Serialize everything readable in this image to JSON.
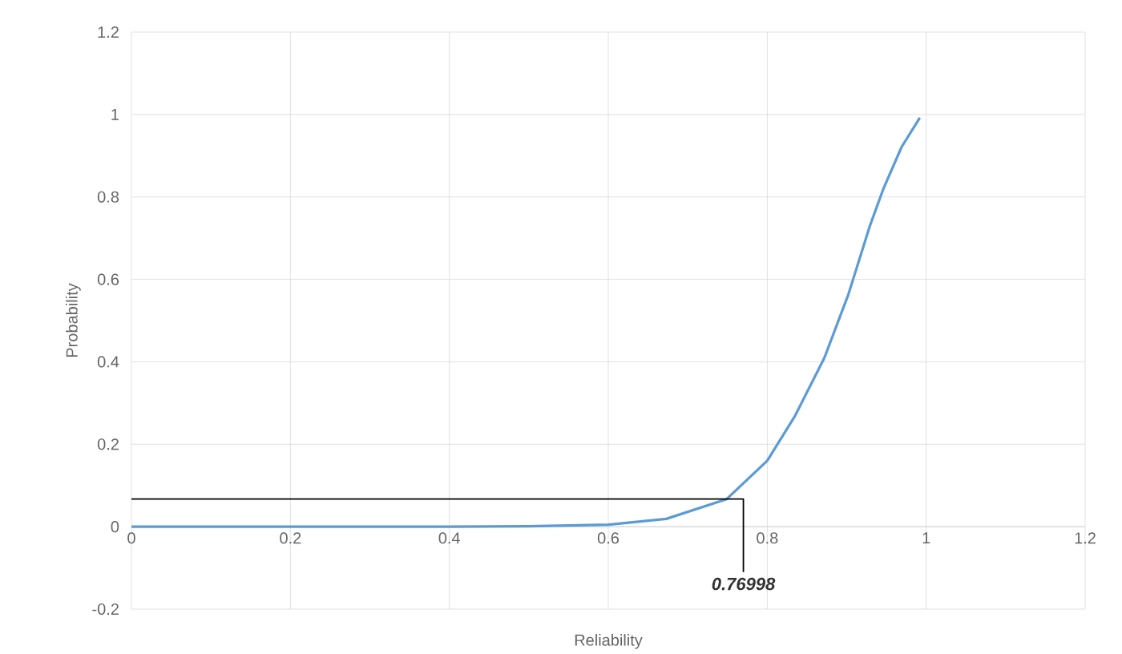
{
  "chart_data": {
    "type": "line",
    "xlabel": "Reliability",
    "ylabel": "Probability",
    "series": [
      {
        "color": "#5b9bd5",
        "x": [
          0,
          0.1,
          0.2,
          0.3,
          0.4,
          0.5,
          0.6,
          0.673,
          0.749,
          0.8,
          0.835,
          0.872,
          0.902,
          0.929,
          0.946,
          0.969,
          0.992
        ],
        "values": [
          0,
          0,
          0,
          0,
          0,
          0.001,
          0.005,
          0.019,
          0.067,
          0.16,
          0.269,
          0.41,
          0.563,
          0.729,
          0.819,
          0.921,
          0.992
        ]
      },
      {
        "color": "#000000",
        "x": [
          0,
          0.76998,
          0.76998
        ],
        "values": [
          0.067,
          0.067,
          -0.11
        ]
      }
    ],
    "annotations": [
      "0.76998"
    ],
    "xlim": [
      0,
      1.2
    ],
    "xticks": [
      0,
      0.2,
      0.4,
      0.6,
      0.8,
      1,
      1.2
    ],
    "ylim": [
      -0.2,
      1.2
    ],
    "yticks": [
      -0.2,
      0,
      0.2,
      0.4,
      0.6,
      0.8,
      1,
      1.2
    ],
    "grid": true,
    "marker": "none",
    "line_style": "solid"
  }
}
